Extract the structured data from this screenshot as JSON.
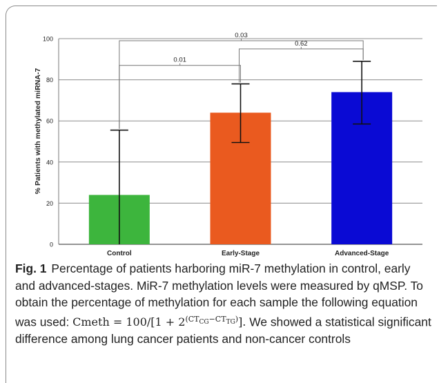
{
  "chart_data": {
    "type": "bar",
    "title": "",
    "xlabel": "",
    "ylabel": "% Patients with methylated miRNA-7",
    "ylim": [
      0,
      100
    ],
    "yticks": [
      0,
      20,
      40,
      60,
      80,
      100
    ],
    "grid": true,
    "categories": [
      "Control",
      "Early-Stage",
      "Advanced-Stage"
    ],
    "values": [
      24,
      64,
      74
    ],
    "error_low": [
      0,
      49.5,
      58.5
    ],
    "error_high": [
      55.5,
      78,
      89
    ],
    "colors": [
      "#3db53d",
      "#ea5a1f",
      "#0a0ad4"
    ],
    "significance": [
      {
        "from": 0,
        "to": 1,
        "label": "0.01",
        "y": 87
      },
      {
        "from": 1,
        "to": 2,
        "label": "0.62",
        "y": 95
      },
      {
        "from": 0,
        "to": 2,
        "label": "0.03",
        "y": 99
      }
    ]
  },
  "caption": {
    "fig_label": "Fig. 1",
    "text_before_eq": "Percentage of patients harboring miR-7 methylation in control, early and advanced-stages. MiR-7 methylation levels were measured by qMSP. To obtain the percentage of methylation for each sample the following equation was used: ",
    "eq_lhs": "Cmeth = 100/",
    "eq_base": "[1 + 2",
    "eq_exp_a": "(CT",
    "eq_sub_a": "CG",
    "eq_minus": "−CT",
    "eq_sub_b": "TG",
    "eq_exp_close": ")",
    "eq_close": "].",
    "text_after_eq": " We showed a statistical significant difference among lung cancer patients and non-cancer controls"
  }
}
